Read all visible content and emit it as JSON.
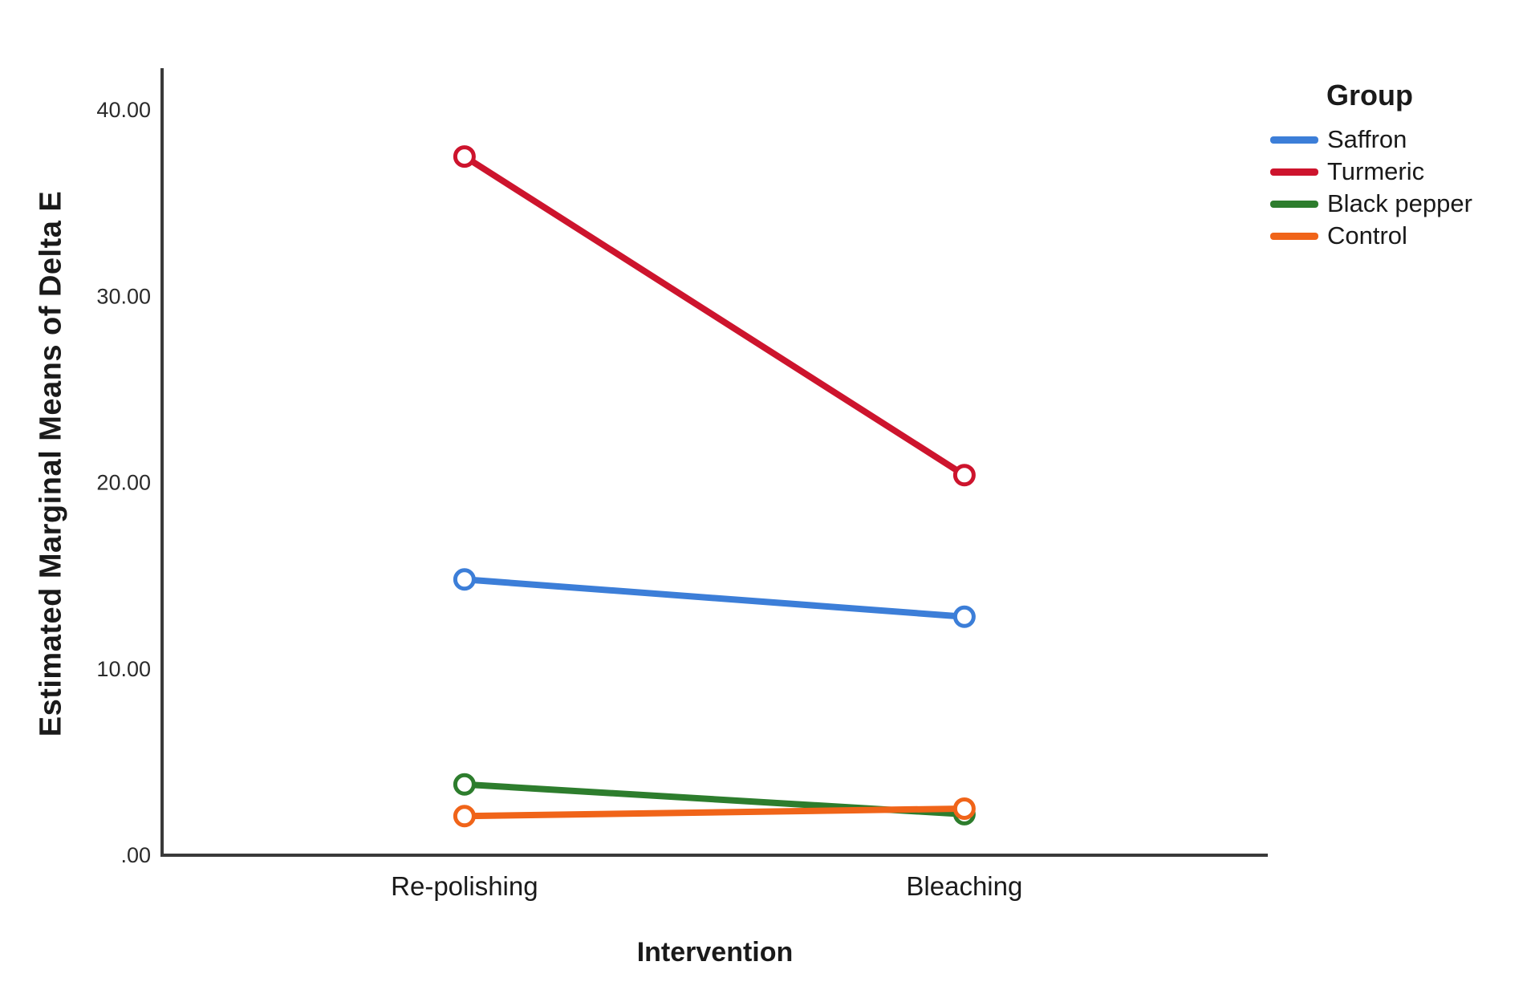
{
  "chart_data": {
    "type": "line",
    "title": "",
    "xlabel": "Intervention",
    "ylabel": "Estimated Marginal Means of Delta E",
    "legend_title": "Group",
    "legend_position": "top-right",
    "grid": false,
    "marker_style": "open-circle",
    "categories": [
      "Re-polishing",
      "Bleaching"
    ],
    "yticks": [
      {
        "label": ".00",
        "value": 0
      },
      {
        "label": "10.00",
        "value": 10
      },
      {
        "label": "20.00",
        "value": 20
      },
      {
        "label": "30.00",
        "value": 30
      },
      {
        "label": "40.00",
        "value": 40
      }
    ],
    "ylim": [
      0,
      42.2
    ],
    "axis_color": "#3a3a3a",
    "text_color": "#1a1a1a",
    "series": [
      {
        "name": "Saffron",
        "color": "#3C7ED8",
        "values": [
          14.8,
          12.8
        ]
      },
      {
        "name": "Turmeric",
        "color": "#CD142D",
        "values": [
          37.5,
          20.4
        ]
      },
      {
        "name": "Black pepper",
        "color": "#2D7D2D",
        "values": [
          3.8,
          2.2
        ]
      },
      {
        "name": "Control",
        "color": "#F06419",
        "values": [
          2.1,
          2.5
        ]
      }
    ]
  }
}
